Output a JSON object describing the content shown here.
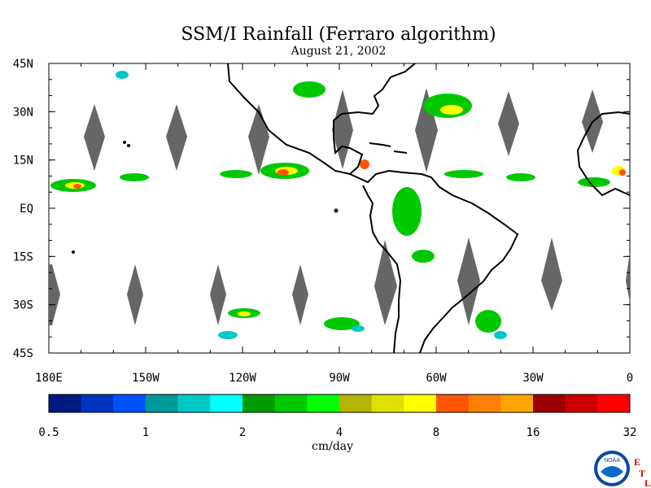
{
  "title": "SSM/I Rainfall (Ferraro algorithm)",
  "subtitle": "August 21, 2002",
  "map": {
    "lat_labels": [
      "45N",
      "30N",
      "15N",
      "EQ",
      "15S",
      "30S",
      "45S"
    ],
    "lon_labels": [
      "180E",
      "150W",
      "120W",
      "90W",
      "60W",
      "30W",
      "0"
    ],
    "lat_range": [
      -45,
      45
    ],
    "lon_range": [
      -180,
      0
    ],
    "ocean_color": "#ffffff",
    "land_outline_color": "#000000",
    "missing_data_color": "#666666"
  },
  "colorbar": {
    "tick_labels": [
      "0.5",
      "1",
      "2",
      "4",
      "8",
      "16",
      "32"
    ],
    "units": "cm/day",
    "colors": [
      "#001a80",
      "#0033c0",
      "#0050ff",
      "#00999a",
      "#00c8c8",
      "#00ffff",
      "#009900",
      "#00c800",
      "#00ff00",
      "#b3b300",
      "#e0e000",
      "#ffff00",
      "#ff5500",
      "#ff8000",
      "#ffa500",
      "#990000",
      "#cc0000",
      "#ff0000"
    ]
  },
  "logo": {
    "agency": "NOAA",
    "lab_letters": [
      "E",
      "T",
      "L"
    ]
  }
}
